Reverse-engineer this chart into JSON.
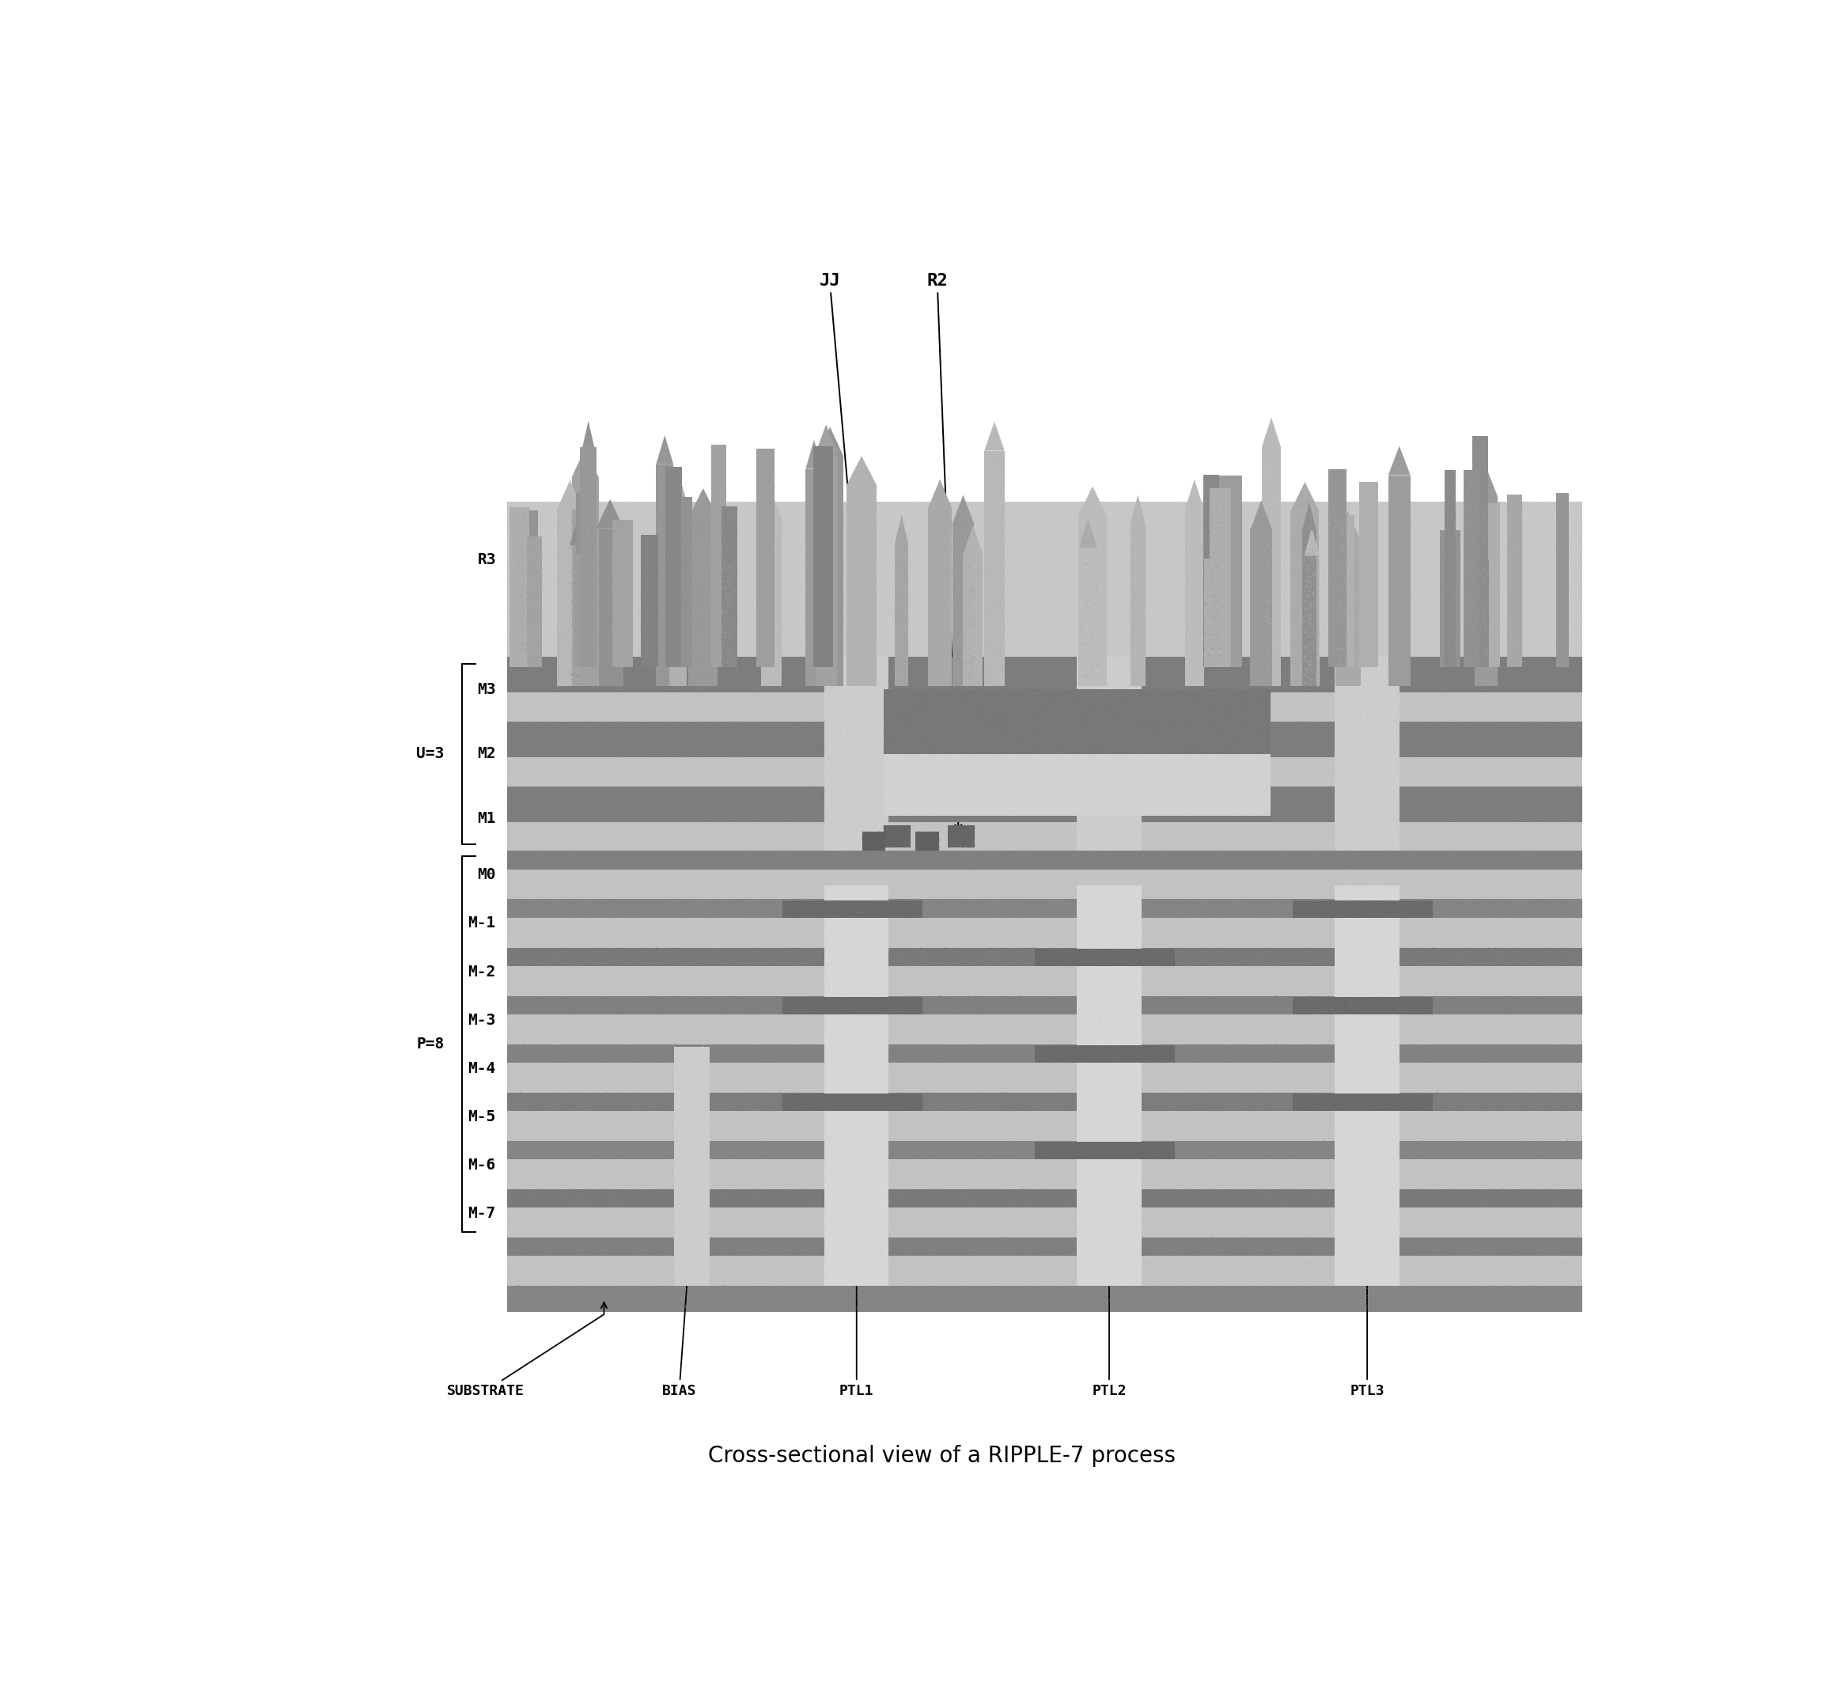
{
  "title": "Cross-sectional view of a RIPPLE-7 process",
  "title_fontsize": 20,
  "fig_width": 23.22,
  "fig_height": 21.51,
  "dl": 0.195,
  "dr": 0.95,
  "dt": 0.895,
  "db": 0.155,
  "layer_labels": [
    "R3",
    "M3",
    "M2",
    "M1",
    "M0",
    "M-1",
    "M-2",
    "M-3",
    "M-4",
    "M-5",
    "M-6",
    "M-7"
  ],
  "u_label": "U=3",
  "p_label": "P=8",
  "c_metal": "#787878",
  "c_metal2": "#686868",
  "c_dielectric": "#bebebe",
  "c_dielectric2": "#cacaca",
  "c_substrate": "#888888",
  "c_light_region": "#d8d8d8",
  "c_upper_block_dark": "#686868",
  "c_upper_block_light": "#d0d0d0",
  "c_spike_base": "#b0b0b0",
  "c_spike_dark": "#909090",
  "c_col_light": "#d5d5d5",
  "c_col_dark": "#585858",
  "c_small_pad": "#606060"
}
